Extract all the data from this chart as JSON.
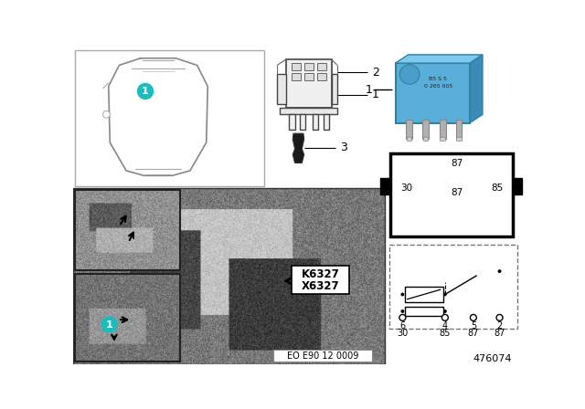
{
  "bg_color": "#ffffff",
  "diagram_num": "476074",
  "eo_label": "EO E90 12 0009",
  "label_K6327": "K6327",
  "label_X6327": "X6327",
  "relay_blue": "#5aafda",
  "circuit_pins_top": [
    "6",
    "4",
    "5",
    "2"
  ],
  "circuit_pins_bot": [
    "30",
    "85",
    "87",
    "87"
  ],
  "photo_gray": "#7a7a7a",
  "inset_gray": "#999999"
}
